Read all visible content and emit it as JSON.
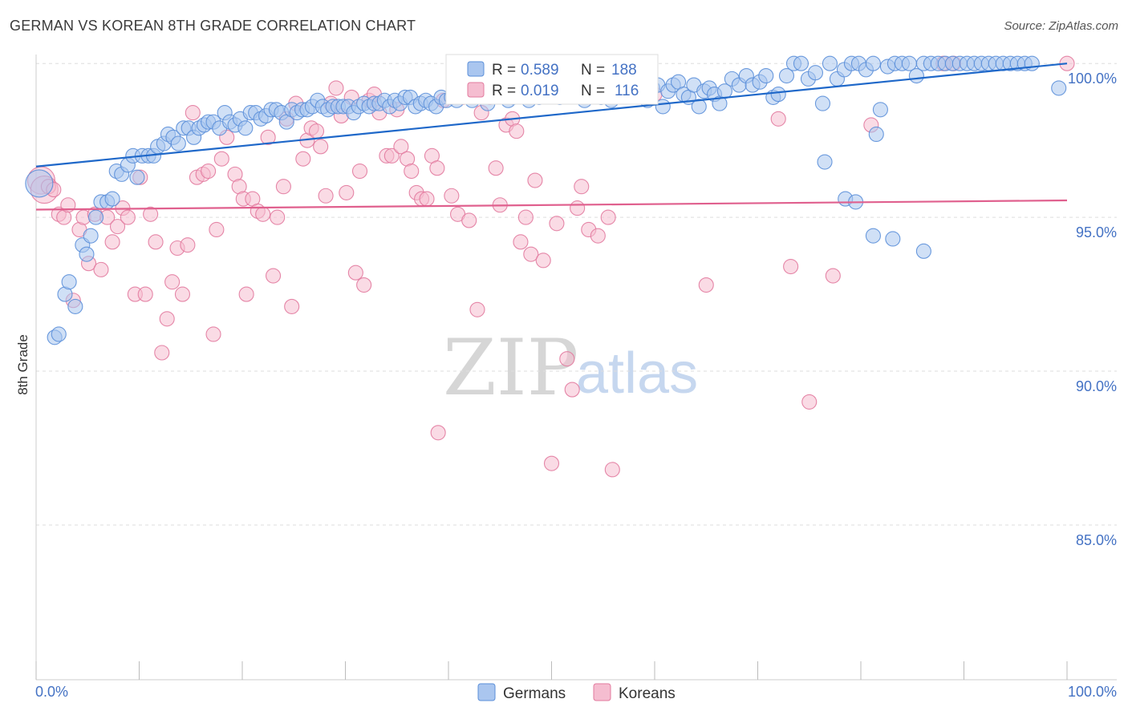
{
  "title": "GERMAN VS KOREAN 8TH GRADE CORRELATION CHART",
  "source": "Source: ZipAtlas.com",
  "watermark": {
    "zip": "ZIP",
    "atlas": "atlas"
  },
  "colors": {
    "german": "#5b8fd9",
    "german_fill": "#aac6ef",
    "korean": "#e27a9e",
    "korean_fill": "#f5bdd0",
    "german_line": "#1f68c9",
    "korean_line": "#e0608e",
    "grid": "#dedede",
    "tick_label": "#4472c4"
  },
  "legend": {
    "german": {
      "r_label": "R = ",
      "r_value": "0.589",
      "n_label": "N = ",
      "n_value": "188"
    },
    "korean": {
      "r_label": "R = ",
      "r_value": "0.019",
      "n_label": "N = ",
      "n_value": "116"
    }
  },
  "chart_data": {
    "type": "scatter",
    "title": "GERMAN VS KOREAN 8TH GRADE CORRELATION CHART",
    "xlabel": "",
    "ylabel": "8th Grade",
    "xlim": [
      0,
      100
    ],
    "ylim": [
      80.7,
      100.5
    ],
    "x_tick_labels": [
      "0.0%",
      "100.0%"
    ],
    "y_ticks": [
      85,
      90,
      95,
      100
    ],
    "y_tick_labels": [
      "85.0%",
      "90.0%",
      "95.0%",
      "100.0%"
    ],
    "grid": "horizontal dashed",
    "legend_position": "top-center",
    "series": [
      {
        "name": "Germans",
        "trend": {
          "x": [
            0,
            100
          ],
          "y": [
            96.65,
            100.0
          ]
        },
        "points": [
          [
            0.3,
            96.1
          ],
          [
            1.8,
            91.1
          ],
          [
            2.2,
            91.2
          ],
          [
            2.8,
            92.5
          ],
          [
            3.2,
            92.9
          ],
          [
            3.8,
            92.1
          ],
          [
            4.5,
            94.1
          ],
          [
            4.9,
            93.8
          ],
          [
            5.3,
            94.4
          ],
          [
            5.8,
            95.0
          ],
          [
            6.3,
            95.5
          ],
          [
            6.9,
            95.5
          ],
          [
            7.4,
            95.6
          ],
          [
            7.8,
            96.5
          ],
          [
            8.3,
            96.4
          ],
          [
            8.9,
            96.7
          ],
          [
            9.4,
            97.0
          ],
          [
            9.8,
            96.3
          ],
          [
            10.3,
            97.0
          ],
          [
            10.9,
            97.0
          ],
          [
            11.4,
            97.0
          ],
          [
            11.8,
            97.3
          ],
          [
            12.4,
            97.4
          ],
          [
            12.8,
            97.7
          ],
          [
            13.3,
            97.6
          ],
          [
            13.8,
            97.4
          ],
          [
            14.3,
            97.9
          ],
          [
            14.8,
            97.9
          ],
          [
            15.3,
            97.6
          ],
          [
            15.8,
            97.9
          ],
          [
            16.3,
            98.0
          ],
          [
            16.7,
            98.1
          ],
          [
            17.2,
            98.1
          ],
          [
            17.8,
            97.9
          ],
          [
            18.3,
            98.4
          ],
          [
            18.8,
            98.1
          ],
          [
            19.3,
            98.0
          ],
          [
            19.8,
            98.2
          ],
          [
            20.3,
            97.9
          ],
          [
            20.8,
            98.4
          ],
          [
            21.3,
            98.4
          ],
          [
            21.8,
            98.2
          ],
          [
            22.3,
            98.3
          ],
          [
            22.8,
            98.5
          ],
          [
            23.3,
            98.5
          ],
          [
            23.8,
            98.4
          ],
          [
            24.3,
            98.1
          ],
          [
            24.8,
            98.5
          ],
          [
            25.3,
            98.4
          ],
          [
            25.8,
            98.5
          ],
          [
            26.3,
            98.5
          ],
          [
            26.8,
            98.6
          ],
          [
            27.3,
            98.8
          ],
          [
            27.8,
            98.6
          ],
          [
            28.3,
            98.5
          ],
          [
            28.8,
            98.6
          ],
          [
            29.3,
            98.6
          ],
          [
            29.8,
            98.6
          ],
          [
            30.3,
            98.6
          ],
          [
            30.8,
            98.4
          ],
          [
            31.3,
            98.6
          ],
          [
            31.8,
            98.7
          ],
          [
            32.3,
            98.6
          ],
          [
            32.8,
            98.7
          ],
          [
            33.3,
            98.7
          ],
          [
            33.8,
            98.8
          ],
          [
            34.3,
            98.6
          ],
          [
            34.8,
            98.8
          ],
          [
            35.3,
            98.7
          ],
          [
            35.8,
            98.9
          ],
          [
            36.3,
            98.9
          ],
          [
            36.8,
            98.6
          ],
          [
            37.3,
            98.7
          ],
          [
            37.8,
            98.8
          ],
          [
            38.3,
            98.7
          ],
          [
            38.8,
            98.6
          ],
          [
            39.3,
            98.9
          ],
          [
            39.8,
            98.8
          ],
          [
            40.3,
            98.9
          ],
          [
            40.8,
            98.8
          ],
          [
            41.3,
            99.0
          ],
          [
            41.8,
            99.1
          ],
          [
            42.3,
            98.8
          ],
          [
            42.8,
            99.0
          ],
          [
            43.3,
            99.0
          ],
          [
            43.8,
            98.7
          ],
          [
            44.3,
            99.0
          ],
          [
            44.8,
            99.2
          ],
          [
            45.3,
            99.0
          ],
          [
            45.8,
            98.8
          ],
          [
            46.3,
            98.9
          ],
          [
            46.8,
            99.1
          ],
          [
            47.3,
            99.0
          ],
          [
            47.8,
            98.8
          ],
          [
            48.3,
            99.0
          ],
          [
            48.8,
            98.9
          ],
          [
            49.3,
            99.0
          ],
          [
            49.8,
            99.0
          ],
          [
            50.3,
            99.1
          ],
          [
            50.8,
            98.9
          ],
          [
            51.3,
            99.0
          ],
          [
            51.8,
            99.2
          ],
          [
            52.3,
            99.1
          ],
          [
            52.8,
            99.0
          ],
          [
            53.3,
            99.1
          ],
          [
            53.8,
            99.0
          ],
          [
            54.3,
            99.2
          ],
          [
            54.8,
            98.9
          ],
          [
            55.3,
            99.1
          ],
          [
            55.8,
            98.8
          ],
          [
            56.3,
            99.1
          ],
          [
            56.8,
            99.0
          ],
          [
            57.3,
            99.1
          ],
          [
            57.8,
            99.2
          ],
          [
            58.3,
            99.3
          ],
          [
            58.8,
            99.1
          ],
          [
            59.3,
            98.8
          ],
          [
            59.8,
            99.2
          ],
          [
            60.3,
            99.3
          ],
          [
            60.8,
            98.6
          ],
          [
            61.3,
            99.1
          ],
          [
            61.8,
            99.3
          ],
          [
            62.3,
            99.4
          ],
          [
            62.8,
            99.0
          ],
          [
            63.3,
            98.9
          ],
          [
            63.8,
            99.3
          ],
          [
            64.3,
            98.6
          ],
          [
            64.8,
            99.1
          ],
          [
            65.3,
            99.2
          ],
          [
            65.8,
            99.0
          ],
          [
            66.3,
            98.7
          ],
          [
            66.8,
            99.1
          ],
          [
            67.5,
            99.5
          ],
          [
            68.2,
            99.3
          ],
          [
            68.9,
            99.6
          ],
          [
            69.5,
            99.3
          ],
          [
            70.2,
            99.4
          ],
          [
            70.8,
            99.6
          ],
          [
            71.5,
            98.9
          ],
          [
            72.0,
            99.0
          ],
          [
            72.8,
            99.6
          ],
          [
            73.5,
            100.0
          ],
          [
            74.2,
            100.0
          ],
          [
            74.9,
            99.5
          ],
          [
            75.6,
            99.7
          ],
          [
            76.3,
            98.7
          ],
          [
            77.0,
            100.0
          ],
          [
            77.7,
            99.5
          ],
          [
            78.4,
            99.8
          ],
          [
            79.1,
            100.0
          ],
          [
            79.8,
            100.0
          ],
          [
            80.5,
            99.8
          ],
          [
            81.2,
            100.0
          ],
          [
            81.9,
            98.5
          ],
          [
            82.6,
            99.9
          ],
          [
            83.3,
            100.0
          ],
          [
            84.0,
            100.0
          ],
          [
            84.7,
            100.0
          ],
          [
            85.4,
            99.6
          ],
          [
            86.1,
            100.0
          ],
          [
            86.8,
            100.0
          ],
          [
            87.5,
            100.0
          ],
          [
            88.2,
            100.0
          ],
          [
            88.9,
            100.0
          ],
          [
            89.6,
            100.0
          ],
          [
            90.3,
            100.0
          ],
          [
            91.0,
            100.0
          ],
          [
            91.7,
            100.0
          ],
          [
            92.4,
            100.0
          ],
          [
            93.1,
            100.0
          ],
          [
            93.8,
            100.0
          ],
          [
            94.5,
            100.0
          ],
          [
            95.2,
            100.0
          ],
          [
            95.9,
            100.0
          ],
          [
            96.6,
            100.0
          ],
          [
            99.2,
            99.2
          ],
          [
            76.5,
            96.8
          ],
          [
            78.5,
            95.6
          ],
          [
            79.5,
            95.5
          ],
          [
            81.5,
            97.7
          ],
          [
            81.2,
            94.4
          ],
          [
            83.1,
            94.3
          ],
          [
            86.1,
            93.9
          ],
          [
            53.2,
            98.8
          ]
        ]
      },
      {
        "name": "Koreans",
        "trend": {
          "x": [
            0,
            100
          ],
          "y": [
            95.25,
            95.55
          ]
        },
        "points": [
          [
            0.5,
            96.2
          ],
          [
            0.8,
            95.9
          ],
          [
            1.2,
            96.0
          ],
          [
            1.7,
            95.9
          ],
          [
            2.2,
            95.1
          ],
          [
            2.7,
            95.0
          ],
          [
            3.1,
            95.4
          ],
          [
            3.6,
            92.3
          ],
          [
            4.2,
            94.6
          ],
          [
            4.6,
            95.0
          ],
          [
            5.1,
            93.5
          ],
          [
            5.7,
            95.1
          ],
          [
            6.3,
            93.3
          ],
          [
            6.9,
            95.0
          ],
          [
            7.4,
            94.2
          ],
          [
            7.9,
            94.7
          ],
          [
            8.4,
            95.3
          ],
          [
            8.9,
            95.0
          ],
          [
            9.6,
            92.5
          ],
          [
            10.1,
            96.3
          ],
          [
            10.6,
            92.5
          ],
          [
            11.1,
            95.1
          ],
          [
            11.6,
            94.2
          ],
          [
            12.2,
            90.6
          ],
          [
            12.7,
            91.7
          ],
          [
            13.2,
            92.9
          ],
          [
            13.7,
            94.0
          ],
          [
            14.2,
            92.5
          ],
          [
            14.7,
            94.1
          ],
          [
            15.2,
            98.4
          ],
          [
            15.6,
            96.3
          ],
          [
            16.2,
            96.4
          ],
          [
            16.7,
            96.5
          ],
          [
            17.2,
            91.2
          ],
          [
            17.5,
            94.6
          ],
          [
            18.0,
            96.9
          ],
          [
            18.5,
            97.6
          ],
          [
            19.3,
            96.4
          ],
          [
            19.7,
            96.0
          ],
          [
            20.1,
            95.6
          ],
          [
            20.4,
            92.5
          ],
          [
            21.0,
            95.6
          ],
          [
            21.5,
            95.2
          ],
          [
            22.0,
            95.1
          ],
          [
            22.5,
            97.6
          ],
          [
            23.0,
            93.1
          ],
          [
            23.4,
            95.0
          ],
          [
            24.0,
            96.0
          ],
          [
            24.3,
            98.2
          ],
          [
            24.8,
            92.1
          ],
          [
            25.2,
            98.7
          ],
          [
            25.9,
            96.9
          ],
          [
            26.3,
            97.5
          ],
          [
            26.7,
            97.9
          ],
          [
            27.2,
            97.8
          ],
          [
            27.6,
            97.3
          ],
          [
            28.1,
            95.7
          ],
          [
            28.6,
            98.7
          ],
          [
            29.1,
            99.2
          ],
          [
            29.6,
            98.3
          ],
          [
            30.1,
            95.8
          ],
          [
            30.6,
            98.9
          ],
          [
            31.0,
            93.2
          ],
          [
            31.4,
            96.5
          ],
          [
            31.8,
            92.8
          ],
          [
            32.3,
            98.8
          ],
          [
            32.8,
            99.0
          ],
          [
            33.3,
            98.4
          ],
          [
            34.0,
            97.0
          ],
          [
            34.5,
            97.0
          ],
          [
            35.0,
            98.5
          ],
          [
            35.4,
            97.3
          ],
          [
            36.0,
            96.9
          ],
          [
            36.4,
            96.5
          ],
          [
            36.9,
            95.8
          ],
          [
            37.4,
            95.6
          ],
          [
            37.9,
            95.6
          ],
          [
            38.4,
            97.0
          ],
          [
            38.9,
            96.6
          ],
          [
            39.5,
            98.8
          ],
          [
            40.3,
            95.7
          ],
          [
            40.9,
            95.1
          ],
          [
            41.4,
            98.9
          ],
          [
            42.0,
            94.9
          ],
          [
            42.8,
            92.0
          ],
          [
            43.2,
            98.4
          ],
          [
            44.0,
            98.9
          ],
          [
            44.6,
            96.6
          ],
          [
            45.0,
            95.4
          ],
          [
            45.6,
            98.0
          ],
          [
            46.2,
            98.2
          ],
          [
            46.6,
            97.8
          ],
          [
            47.0,
            94.2
          ],
          [
            47.5,
            95.0
          ],
          [
            48.0,
            93.8
          ],
          [
            48.4,
            96.2
          ],
          [
            49.2,
            93.6
          ],
          [
            50.0,
            87.0
          ],
          [
            50.5,
            94.8
          ],
          [
            51.5,
            90.4
          ],
          [
            52.0,
            89.4
          ],
          [
            52.5,
            95.3
          ],
          [
            52.9,
            96.0
          ],
          [
            53.6,
            94.6
          ],
          [
            54.5,
            94.4
          ],
          [
            55.5,
            95.0
          ],
          [
            55.9,
            86.8
          ],
          [
            65.0,
            92.8
          ],
          [
            73.2,
            93.4
          ],
          [
            75.0,
            89.0
          ],
          [
            77.3,
            93.1
          ],
          [
            72.0,
            98.2
          ],
          [
            39.0,
            88.0
          ],
          [
            100.0,
            100.0
          ],
          [
            81.0,
            98.0
          ],
          [
            89.0,
            100.0
          ],
          [
            88.0,
            100.0
          ],
          [
            60.0,
            99.0
          ]
        ]
      }
    ]
  }
}
